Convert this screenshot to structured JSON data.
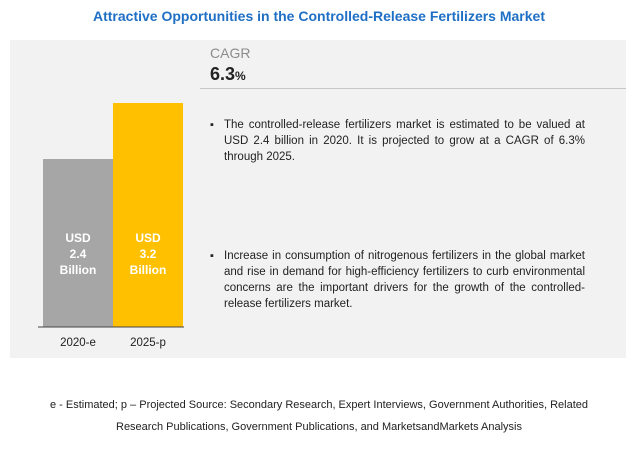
{
  "title": "Attractive Opportunities in the Controlled-Release Fertilizers Market",
  "cagr": {
    "label": "CAGR",
    "value": "6.3",
    "unit": "%"
  },
  "bullets": [
    "The controlled-release fertilizers market is estimated to be valued at USD 2.4 billion in 2020. It is projected to grow at a CAGR of 6.3% through 2025.",
    "Increase in consumption of nitrogenous fertilizers in the global market and rise in demand for high-efficiency fertilizers to curb environmental concerns are the important drivers for the growth of the controlled-release fertilizers market."
  ],
  "footnote": {
    "line1": "e - Estimated; p – Projected Source: Secondary Research, Expert Interviews, Government Authorities, Related",
    "line2": "Research Publications, Government Publications, and MarketsandMarkets Analysis"
  },
  "colors": {
    "title": "#1f6fc5",
    "bar_2020": "#a6a6a6",
    "bar_2025": "#ffc000"
  },
  "chart_data": {
    "type": "bar",
    "categories": [
      "2020-e",
      "2025-p"
    ],
    "values": [
      2.4,
      3.2
    ],
    "data_labels": [
      [
        "USD",
        "2.4",
        "Billion"
      ],
      [
        "USD",
        "3.2",
        "Billion"
      ]
    ],
    "ylim": [
      0,
      3.2
    ],
    "grid": false,
    "legend": "none"
  }
}
